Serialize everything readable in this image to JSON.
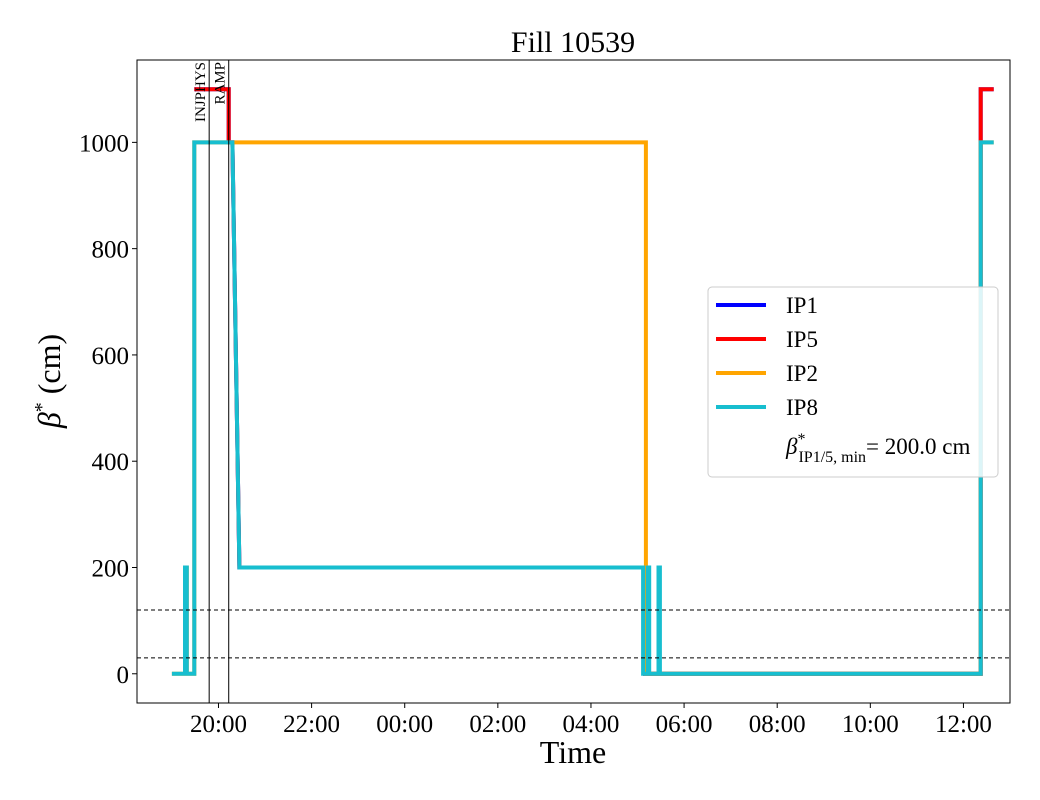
{
  "chart_data": {
    "type": "line",
    "title": "Fill 10539",
    "xlabel": "Time",
    "ylabel_symbol": "β",
    "ylabel_sup": "*",
    "ylabel_unit": "(cm)",
    "x_unit": "hours from 00:00 (day 2)",
    "xlim": [
      -5.75,
      13.0
    ],
    "ylim": [
      -55,
      1155
    ],
    "x_ticks": [
      {
        "value": -4,
        "label": "20:00"
      },
      {
        "value": -2,
        "label": "22:00"
      },
      {
        "value": 0,
        "label": "00:00"
      },
      {
        "value": 2,
        "label": "02:00"
      },
      {
        "value": 4,
        "label": "04:00"
      },
      {
        "value": 6,
        "label": "06:00"
      },
      {
        "value": 8,
        "label": "08:00"
      },
      {
        "value": 10,
        "label": "10:00"
      },
      {
        "value": 12,
        "label": "12:00"
      }
    ],
    "y_ticks": [
      {
        "value": 0,
        "label": "0"
      },
      {
        "value": 200,
        "label": "200"
      },
      {
        "value": 400,
        "label": "400"
      },
      {
        "value": 600,
        "label": "600"
      },
      {
        "value": 800,
        "label": "800"
      },
      {
        "value": 1000,
        "label": "1000"
      }
    ],
    "grid": false,
    "legend_position": "center-right",
    "series": [
      {
        "name": "IP1",
        "color": "#0000ff",
        "points": [
          [
            -4.52,
            1100
          ],
          [
            -3.78,
            1100
          ],
          [
            -3.78,
            1000
          ],
          [
            -3.7,
            1000
          ],
          [
            -3.55,
            200
          ],
          [
            2.0,
            200
          ],
          [
            5.16,
            200
          ],
          [
            5.16,
            0
          ],
          [
            12.37,
            0
          ],
          [
            12.37,
            1100
          ],
          [
            12.65,
            1100
          ]
        ]
      },
      {
        "name": "IP5",
        "color": "#ff0000",
        "points": [
          [
            -4.52,
            1100
          ],
          [
            -3.78,
            1100
          ],
          [
            -3.78,
            1000
          ],
          [
            -3.7,
            1000
          ],
          [
            -3.55,
            200
          ],
          [
            2.0,
            200
          ],
          [
            5.16,
            200
          ],
          [
            5.16,
            0
          ],
          [
            12.37,
            0
          ],
          [
            12.37,
            1100
          ],
          [
            12.65,
            1100
          ]
        ]
      },
      {
        "name": "IP2",
        "color": "#ffa500",
        "points": [
          [
            -5.0,
            0
          ],
          [
            -4.72,
            0
          ],
          [
            -4.72,
            200
          ],
          [
            -4.68,
            200
          ],
          [
            -4.68,
            0
          ],
          [
            -4.52,
            0
          ],
          [
            -4.52,
            1000
          ],
          [
            5.18,
            1000
          ],
          [
            5.18,
            0
          ],
          [
            12.37,
            0
          ],
          [
            12.37,
            1000
          ],
          [
            12.65,
            1000
          ]
        ]
      },
      {
        "name": "IP8",
        "color": "#17becf",
        "points": [
          [
            -5.0,
            0
          ],
          [
            -4.72,
            0
          ],
          [
            -4.72,
            200
          ],
          [
            -4.68,
            200
          ],
          [
            -4.68,
            0
          ],
          [
            -4.52,
            0
          ],
          [
            -4.52,
            1000
          ],
          [
            -3.78,
            1000
          ],
          [
            -3.7,
            1000
          ],
          [
            -3.55,
            200
          ],
          [
            5.12,
            200
          ],
          [
            5.12,
            0
          ],
          [
            5.22,
            0
          ],
          [
            5.22,
            200
          ],
          [
            5.25,
            200
          ],
          [
            5.25,
            0
          ],
          [
            5.45,
            0
          ],
          [
            5.45,
            200
          ],
          [
            5.48,
            200
          ],
          [
            5.48,
            0
          ],
          [
            12.37,
            0
          ],
          [
            12.37,
            1000
          ],
          [
            12.65,
            1000
          ]
        ]
      }
    ],
    "legend_extra": {
      "symbol": "β",
      "sup": "*",
      "sub": "IP1/5, min",
      "value": "= 200.0 cm"
    },
    "hlines": [
      {
        "y": 120,
        "style": "dashed",
        "color": "#000000"
      },
      {
        "y": 30,
        "style": "dashed",
        "color": "#000000"
      }
    ],
    "vlines": [
      {
        "x": -4.2,
        "label": "INJPHYS",
        "color": "#000000"
      },
      {
        "x": -3.78,
        "label": "RAMP",
        "color": "#000000"
      }
    ]
  }
}
